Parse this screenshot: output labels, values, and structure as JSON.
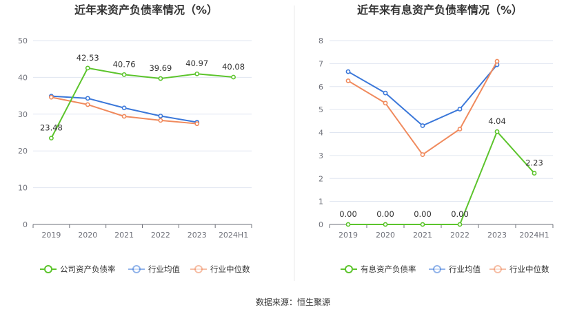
{
  "source": "数据来源：恒生聚源",
  "colors": {
    "company": "#5cc42c",
    "industry_avg": "#3a77d9",
    "industry_median": "#f08a5d",
    "grid": "#e0e6f1",
    "axis": "#6e7079",
    "divider": "#e8e8e8"
  },
  "chart_data": [
    {
      "type": "line",
      "title": "近年来资产负债率情况（%）",
      "categories": [
        "2019",
        "2020",
        "2021",
        "2022",
        "2023",
        "2024H1"
      ],
      "ylim": [
        0,
        50
      ],
      "yticks": [
        0,
        10,
        20,
        30,
        40,
        50
      ],
      "grid": true,
      "legend_position": "bottom",
      "series": [
        {
          "name": "公司资产负债率",
          "key": "company",
          "values": [
            23.48,
            42.53,
            40.76,
            39.69,
            40.97,
            40.08
          ],
          "labels": [
            "23.48",
            "42.53",
            "40.76",
            "39.69",
            "40.97",
            "40.08"
          ]
        },
        {
          "name": "行业均值",
          "key": "industry_avg",
          "values": [
            34.9,
            34.3,
            31.7,
            29.5,
            27.8,
            null
          ]
        },
        {
          "name": "行业中位数",
          "key": "industry_median",
          "values": [
            34.6,
            32.6,
            29.4,
            28.3,
            27.4,
            null
          ]
        }
      ]
    },
    {
      "type": "line",
      "title": "近年来有息资产负债率情况（%）",
      "categories": [
        "2019",
        "2020",
        "2021",
        "2022",
        "2023",
        "2024H1"
      ],
      "ylim": [
        0,
        8
      ],
      "yticks": [
        0,
        1,
        2,
        3,
        4,
        5,
        6,
        7,
        8
      ],
      "grid": true,
      "legend_position": "bottom",
      "series": [
        {
          "name": "有息资产负债率",
          "key": "company",
          "values": [
            0.0,
            0.0,
            0.0,
            0.0,
            4.04,
            2.23
          ],
          "labels": [
            "0.00",
            "0.00",
            "0.00",
            "0.00",
            "4.04",
            "2.23"
          ]
        },
        {
          "name": "行业均值",
          "key": "industry_avg",
          "values": [
            6.65,
            5.72,
            4.3,
            5.02,
            6.95,
            null
          ]
        },
        {
          "name": "行业中位数",
          "key": "industry_median",
          "values": [
            6.25,
            5.28,
            3.04,
            4.15,
            7.1,
            null
          ]
        }
      ]
    }
  ]
}
